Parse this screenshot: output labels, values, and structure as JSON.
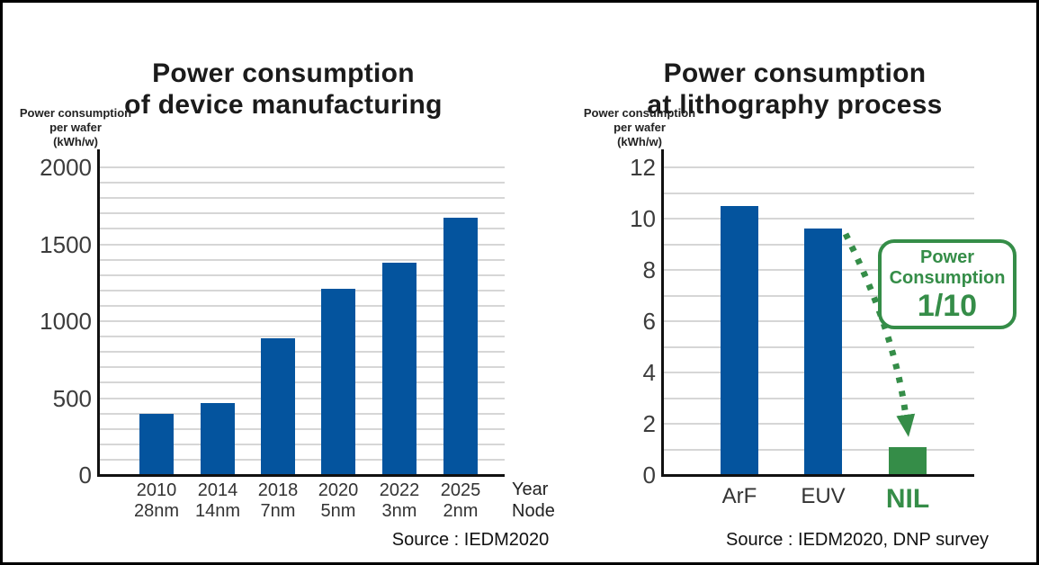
{
  "colors": {
    "bar_blue": "#04549E",
    "accent_green": "#358D48",
    "gridline": "#D6D6D6",
    "axis": "#111111",
    "tick_text": "#3C3C3C"
  },
  "chart_data": [
    {
      "type": "bar",
      "title_lines": [
        "Power consumption",
        "of device manufacturing"
      ],
      "y_axis_label_lines": [
        "Power consumption",
        "per wafer",
        "(kWh/w)"
      ],
      "x_axis_caption_lines": [
        "Year",
        "Node"
      ],
      "source": "Source :  IEDM2020",
      "categories_line1": [
        "2010",
        "2014",
        "2018",
        "2020",
        "2022",
        "2025"
      ],
      "categories_line2": [
        "28nm",
        "14nm",
        "7nm",
        "5nm",
        "3nm",
        "2nm"
      ],
      "values": [
        400,
        470,
        890,
        1210,
        1380,
        1670
      ],
      "ylim": [
        0,
        2000
      ],
      "y_major_ticks": [
        0,
        500,
        1000,
        1500,
        2000
      ],
      "y_minor_step": 100,
      "bar_color": "#04549E",
      "grid": true,
      "legend": "none"
    },
    {
      "type": "bar",
      "title_lines": [
        "Power consumption",
        "at lithography process"
      ],
      "y_axis_label_lines": [
        "Power consumption",
        "per wafer",
        "(kWh/w)"
      ],
      "source": "Source : IEDM2020, DNP survey",
      "categories": [
        "ArF",
        "EUV",
        "NIL"
      ],
      "values": [
        10.5,
        9.6,
        1.1
      ],
      "ylim": [
        0,
        12
      ],
      "y_major_ticks": [
        0,
        2,
        4,
        6,
        8,
        10,
        12
      ],
      "y_minor_step": 1,
      "bar_colors": [
        "#04549E",
        "#04549E",
        "#358D48"
      ],
      "category_colors": [
        "#333333",
        "#333333",
        "#358D48"
      ],
      "category_emphasis": [
        false,
        false,
        true
      ],
      "grid": true,
      "legend": "none",
      "callout": {
        "line1": "Power",
        "line2": "Consumption",
        "line3": "1/10"
      },
      "annotation_arrow": {
        "from": "EUV",
        "to": "NIL",
        "style": "dotted",
        "color": "#358D48"
      }
    }
  ]
}
